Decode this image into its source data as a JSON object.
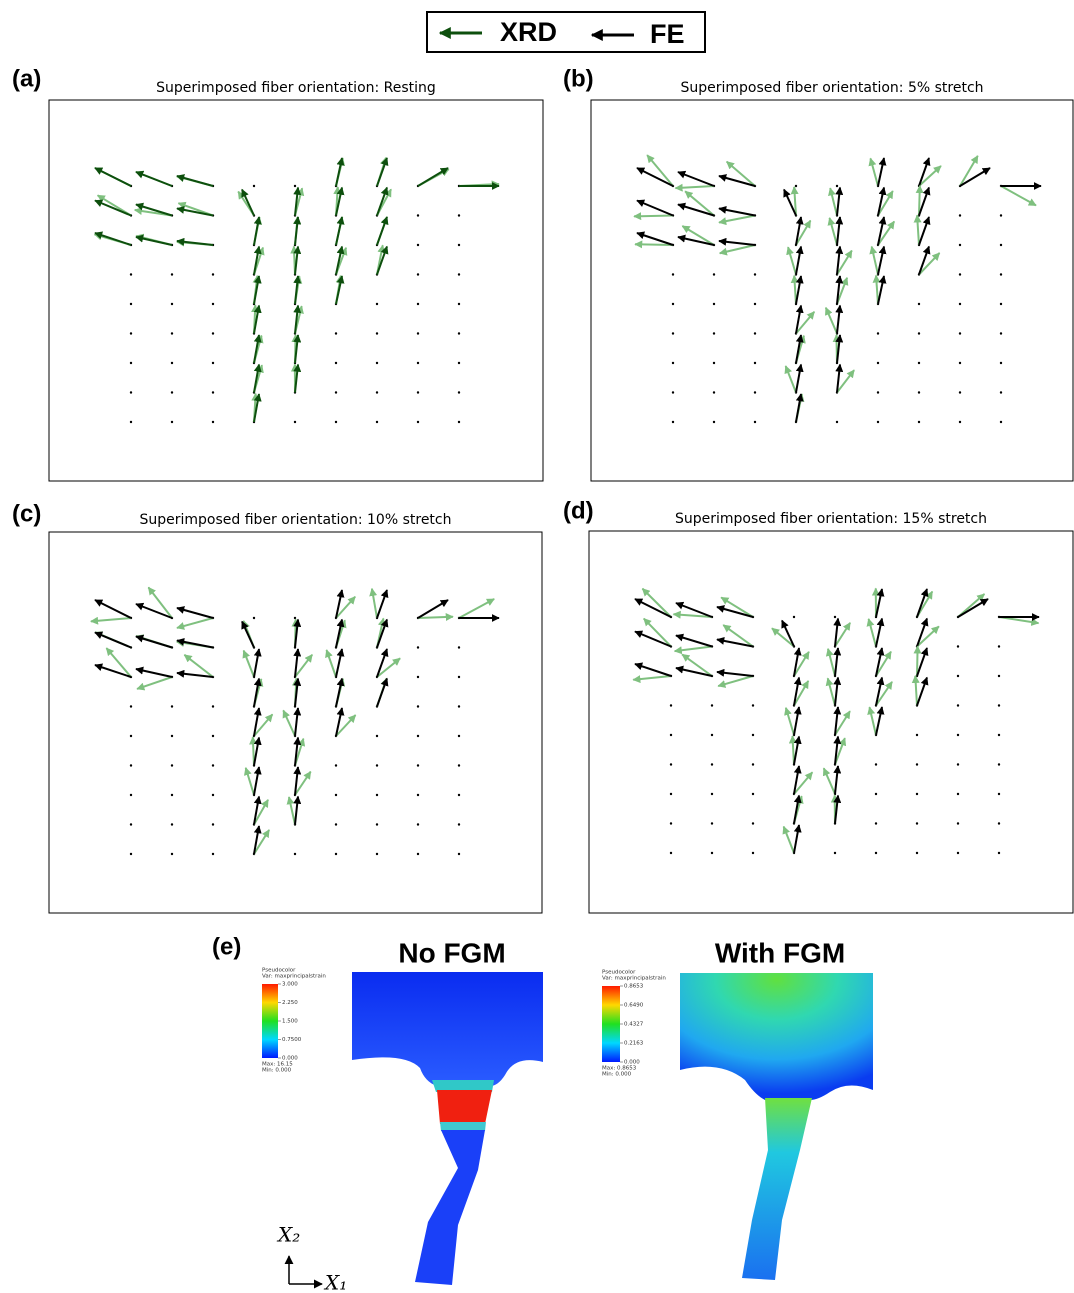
{
  "legend": {
    "xrd": "XRD",
    "fe": "FE"
  },
  "panels": [
    {
      "label": "(a)",
      "title": "Superimposed fiber orientation: Resting"
    },
    {
      "label": "(b)",
      "title": "Superimposed fiber orientation: 5% stretch"
    },
    {
      "label": "(c)",
      "title": "Superimposed fiber orientation: 10% stretch"
    },
    {
      "label": "(d)",
      "title": "Superimposed fiber orientation: 15% stretch"
    }
  ],
  "fe_panel": {
    "label": "(e)",
    "models": [
      {
        "title": "No FGM",
        "colorbar": {
          "header": "Pseudocolor",
          "variable": "Var: maxprincipalstrain",
          "ticks": [
            "3.000",
            "2.250",
            "1.500",
            "0.7500",
            "0.000"
          ],
          "max": "Max: 16.15",
          "min": "Min: 0.000"
        }
      },
      {
        "title": "With FGM",
        "colorbar": {
          "header": "Pseudocolor",
          "variable": "Var: maxprincipalstrain",
          "ticks": [
            "0.8653",
            "0.6490",
            "0.4327",
            "0.2163",
            "0.000"
          ],
          "max": "Max: 0.8653",
          "min": "Min: 0.000"
        }
      }
    ]
  },
  "axes": {
    "vertical": "X₂",
    "horizontal": "X₁"
  }
}
